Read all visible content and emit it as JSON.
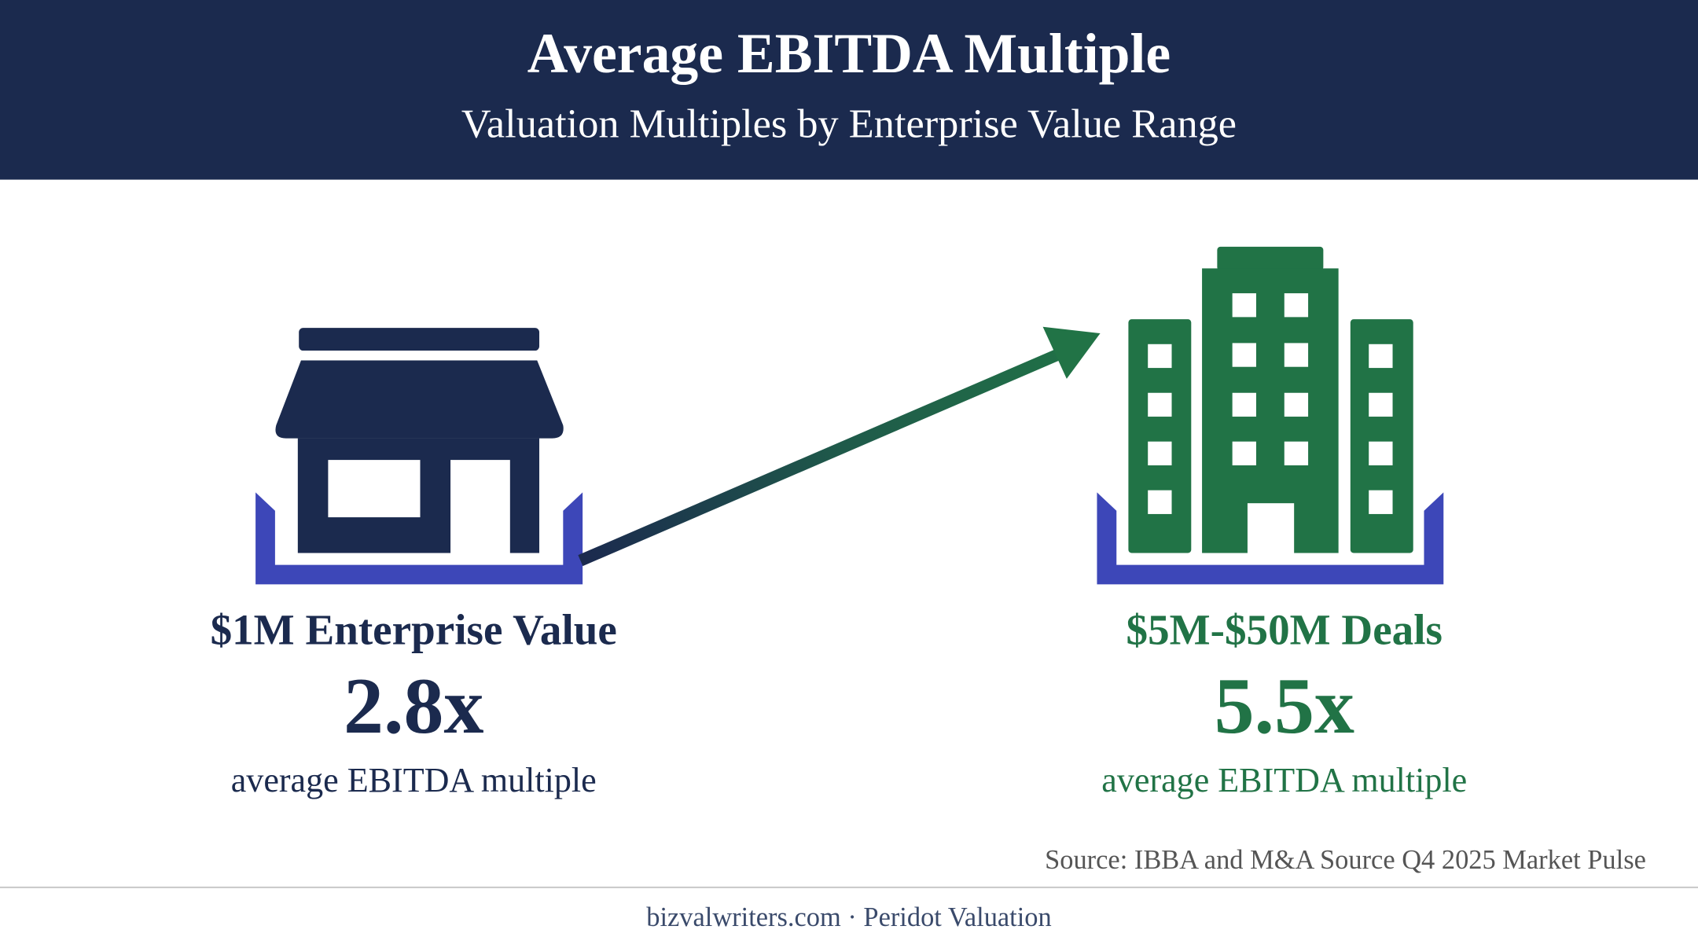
{
  "header": {
    "title": "Average EBITDA Multiple",
    "subtitle": "Valuation Multiples by Enterprise Value Range"
  },
  "panels": [
    {
      "label": "$1M Enterprise Value",
      "multiple": "2.8x",
      "caption": "average EBITDA multiple"
    },
    {
      "label": "$5M-$50M Deals",
      "multiple": "5.5x",
      "caption": "average EBITDA multiple"
    }
  ],
  "source": "Source: IBBA and M&A Source Q4 2025 Market Pulse",
  "footer": "bizvalwriters.com · Peridot Valuation"
}
